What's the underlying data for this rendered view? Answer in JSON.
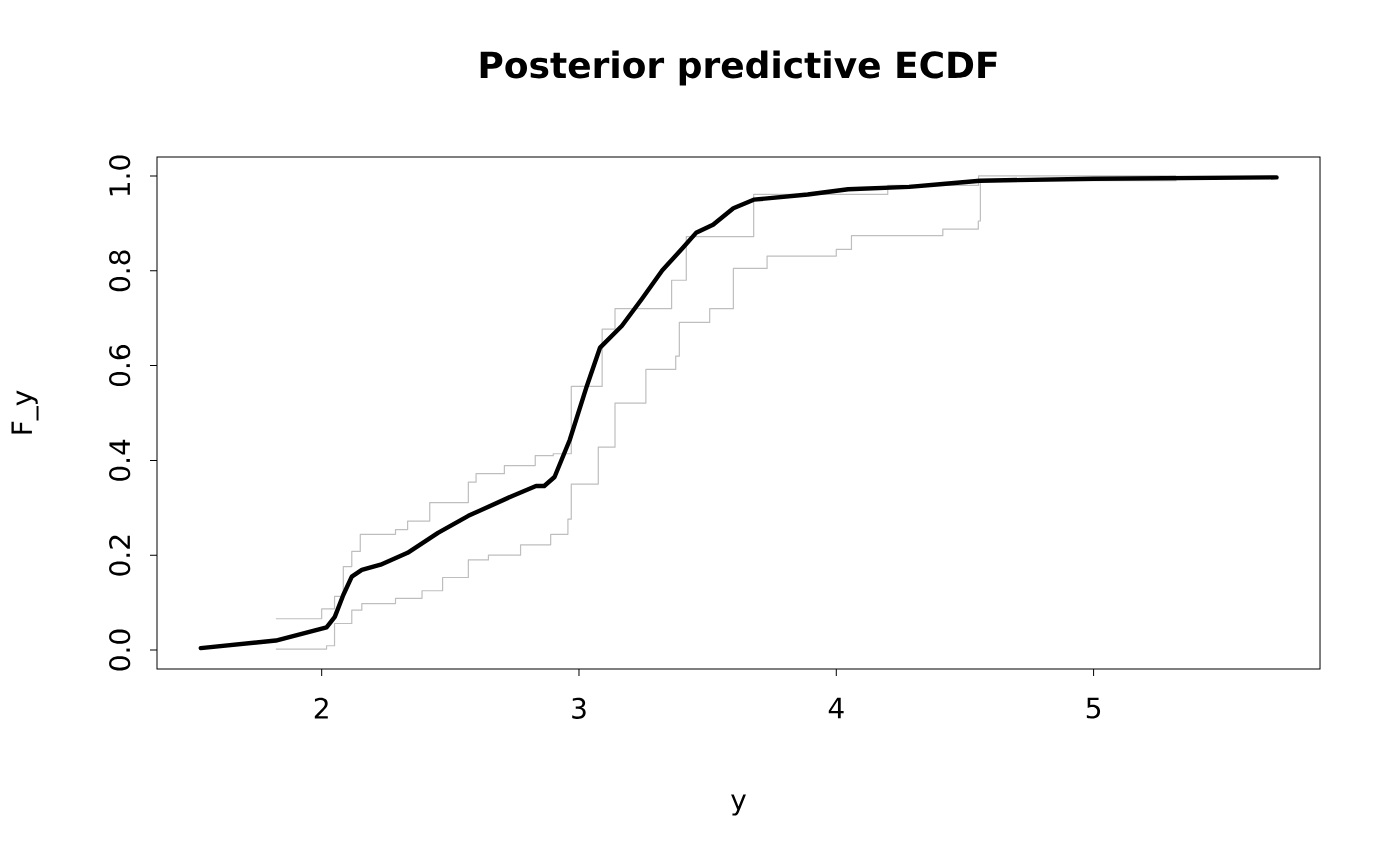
{
  "chart_data": {
    "type": "line",
    "title": "Posterior predictive ECDF",
    "xlabel": "y",
    "ylabel": "F_y",
    "xlim": [
      1.36,
      5.88
    ],
    "ylim": [
      -0.04,
      1.04
    ],
    "xticks": [
      2,
      3,
      4,
      5
    ],
    "yticks": [
      {
        "value": 0,
        "label": "0.0"
      },
      {
        "value": 0.2,
        "label": "0.2"
      },
      {
        "value": 0.4,
        "label": "0.4"
      },
      {
        "value": 0.6,
        "label": "0.6"
      },
      {
        "value": 0.8,
        "label": "0.8"
      },
      {
        "value": 1,
        "label": "1.0"
      }
    ],
    "series": [
      {
        "type": "step",
        "color": "#bebebe",
        "x": [
          1.822,
          2.019,
          2.05,
          2.117,
          2.156,
          2.287,
          2.39,
          2.47,
          2.57,
          2.648,
          2.773,
          2.89,
          2.957,
          2.97,
          3.075,
          3.14,
          3.26,
          3.376,
          3.39,
          3.508,
          3.6,
          3.731,
          4.0,
          4.059,
          4.414,
          4.552,
          4.56,
          5.32
        ],
        "values": [
          0.002,
          0.009,
          0.056,
          0.084,
          0.098,
          0.109,
          0.125,
          0.153,
          0.19,
          0.2,
          0.222,
          0.244,
          0.276,
          0.35,
          0.428,
          0.521,
          0.592,
          0.62,
          0.691,
          0.72,
          0.805,
          0.831,
          0.845,
          0.874,
          0.888,
          0.905,
          0.99,
          1.0
        ]
      },
      {
        "type": "step",
        "color": "#bebebe",
        "x": [
          1.822,
          2.0,
          2.05,
          2.084,
          2.117,
          2.15,
          2.287,
          2.334,
          2.42,
          2.57,
          2.6,
          2.71,
          2.83,
          2.9,
          2.97,
          3.09,
          3.14,
          3.36,
          3.417,
          3.679,
          4.2,
          4.553,
          5.32
        ],
        "values": [
          0.066,
          0.087,
          0.113,
          0.176,
          0.208,
          0.244,
          0.254,
          0.272,
          0.311,
          0.354,
          0.372,
          0.389,
          0.41,
          0.414,
          0.556,
          0.677,
          0.72,
          0.78,
          0.872,
          0.961,
          0.98,
          1.0,
          1.0
        ]
      },
      {
        "type": "line",
        "color": "#000000",
        "x": [
          1.53,
          1.822,
          2.019,
          2.051,
          2.084,
          2.117,
          2.156,
          2.229,
          2.334,
          2.452,
          2.57,
          2.741,
          2.833,
          2.865,
          2.905,
          2.964,
          3.03,
          3.082,
          3.167,
          3.245,
          3.324,
          3.403,
          3.455,
          3.521,
          3.6,
          3.679,
          3.889,
          4.046,
          4.283,
          4.414,
          4.559,
          5.0,
          5.711
        ],
        "values": [
          0.004,
          0.02,
          0.048,
          0.07,
          0.116,
          0.155,
          0.169,
          0.18,
          0.205,
          0.247,
          0.283,
          0.325,
          0.346,
          0.346,
          0.365,
          0.443,
          0.556,
          0.638,
          0.684,
          0.741,
          0.801,
          0.848,
          0.88,
          0.897,
          0.932,
          0.95,
          0.961,
          0.972,
          0.977,
          0.983,
          0.99,
          0.994,
          0.997
        ]
      }
    ]
  }
}
